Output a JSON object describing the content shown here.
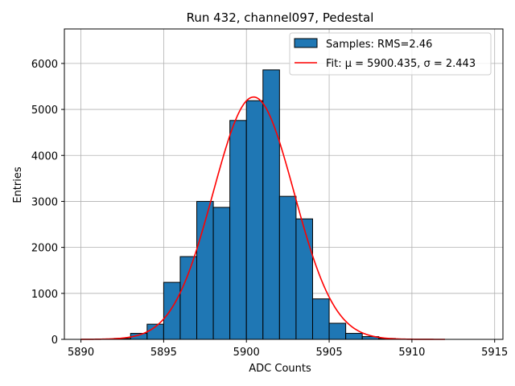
{
  "chart_data": {
    "type": "bar",
    "title": "Run 432, channel097, Pedestal",
    "xlabel": "ADC Counts",
    "ylabel": "Entries",
    "xlim": [
      5889,
      5915.5
    ],
    "ylim": [
      0,
      6750
    ],
    "xticks": [
      5890,
      5895,
      5900,
      5905,
      5910,
      5915
    ],
    "yticks": [
      0,
      1000,
      2000,
      3000,
      4000,
      5000,
      6000
    ],
    "grid": true,
    "legend_position": "top-right",
    "colors": {
      "bars": "#1f77b4",
      "bar_edge": "#000000",
      "fit": "#ff0000",
      "grid": "#b0b0b0"
    },
    "histogram": {
      "name": "Samples: RMS=2.46",
      "bin_edges": [
        5890,
        5891,
        5892,
        5893,
        5894,
        5895,
        5896,
        5897,
        5898,
        5899,
        5900,
        5901,
        5902,
        5903,
        5904,
        5905,
        5906,
        5907,
        5908,
        5909,
        5910,
        5911,
        5912
      ],
      "counts": [
        0,
        0,
        20,
        130,
        330,
        1240,
        1800,
        3000,
        2870,
        4760,
        5190,
        5860,
        3110,
        2620,
        880,
        350,
        130,
        60,
        20,
        0,
        0,
        0
      ]
    },
    "fit": {
      "name": "Fit: μ = 5900.435, σ = 2.443",
      "mu": 5900.435,
      "sigma": 2.443,
      "amplitude": 5270,
      "x_range": [
        5890,
        5912
      ]
    }
  }
}
